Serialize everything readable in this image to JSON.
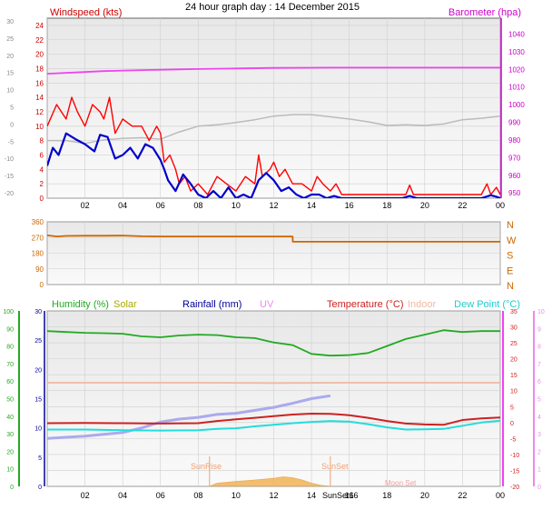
{
  "title": "24 hour graph day : 14 December 2015",
  "x_ticks": [
    "02",
    "04",
    "06",
    "08",
    "10",
    "12",
    "14",
    "16",
    "18",
    "20",
    "22",
    "00"
  ],
  "colors": {
    "wind_axis": "#cc0000",
    "baro_axis": "#cc00cc",
    "wind_gust": "#ff0000",
    "wind_avg": "#0000cc",
    "wind_dir": "#cc6600",
    "baro_line": "#ee44ee",
    "grey_line": "#bbbbbb",
    "humidity": "#22aa22",
    "solar": "#aaaa00",
    "rainfall": "#000099",
    "uv": "#ee88ee",
    "temp": "#cc2222",
    "indoor": "#f0b8a0",
    "dew": "#22dddd",
    "temp_axis": "#ee00ee"
  },
  "chart_data": [
    {
      "type": "line",
      "panel": "wind",
      "labels": {
        "left": "Windspeed (kts)",
        "right": "Barometer (hpa)"
      },
      "left_ticks": [
        "24",
        "22",
        "20",
        "18",
        "16",
        "14",
        "12",
        "10",
        "8",
        "6",
        "4",
        "2",
        "0"
      ],
      "right_ticks": [
        "1040",
        "1030",
        "1020",
        "1010",
        "1000",
        "990",
        "980",
        "970",
        "960",
        "950"
      ],
      "outer_ticks": [
        "30",
        "25",
        "20",
        "15",
        "10",
        "5",
        "0",
        "-5",
        "-10",
        "-15",
        "-20"
      ],
      "ylim_left": [
        0,
        25
      ],
      "ylim_right": [
        947,
        1049
      ],
      "x_range_hours": [
        0,
        24
      ],
      "series": [
        {
          "id": "barometer",
          "axis": "right",
          "x": [
            0,
            2,
            3,
            5,
            7,
            8,
            10,
            12,
            14,
            15,
            16,
            18,
            20,
            22,
            24
          ],
          "y": [
            1017.5,
            1018.5,
            1019,
            1019.6,
            1020,
            1020.2,
            1020.5,
            1020.8,
            1020.9,
            1021,
            1021,
            1021,
            1021,
            1021,
            1021
          ]
        },
        {
          "id": "grey",
          "axis": "left",
          "x": [
            0,
            1,
            2,
            3,
            4,
            5,
            6,
            7,
            8,
            9,
            10,
            11,
            12,
            13,
            14,
            15,
            16,
            17,
            18,
            19,
            20,
            21,
            22,
            23,
            24
          ],
          "y": [
            8,
            8,
            7.6,
            8.1,
            8.3,
            8.4,
            8.2,
            9.2,
            10,
            10.2,
            10.5,
            10.9,
            11.4,
            11.6,
            11.6,
            11.3,
            11,
            10.6,
            10.1,
            10.2,
            10.1,
            10.3,
            10.9,
            11.1,
            11.4
          ]
        },
        {
          "id": "gust",
          "axis": "left",
          "x": [
            0,
            0.5,
            1,
            1.3,
            1.6,
            2,
            2.4,
            2.8,
            3,
            3.3,
            3.6,
            4,
            4.5,
            5,
            5.4,
            5.8,
            6,
            6.2,
            6.5,
            6.8,
            7,
            7.3,
            7.6,
            8,
            8.5,
            9,
            9.5,
            10,
            10.5,
            11,
            11.2,
            11.4,
            11.8,
            12,
            12.3,
            12.6,
            13,
            13.5,
            14,
            14.3,
            14.6,
            15,
            15.3,
            15.6,
            16,
            16.5,
            17,
            17.5,
            18,
            18.5,
            19,
            19.2,
            19.4,
            20,
            20.5,
            21,
            21.5,
            22,
            22.5,
            23,
            23.3,
            23.5,
            23.8,
            24
          ],
          "y": [
            10,
            13,
            11,
            14,
            12,
            10,
            13,
            12,
            11,
            14,
            9,
            11,
            10,
            10,
            8,
            10,
            9,
            5,
            6,
            4,
            2,
            3,
            1,
            2,
            0.5,
            3,
            2,
            1,
            3,
            2,
            6,
            3,
            4,
            5,
            3,
            4,
            2,
            2,
            1,
            3,
            2,
            1,
            2,
            0.5,
            0.5,
            0.5,
            0.5,
            0.5,
            0.5,
            0.5,
            0.5,
            1.8,
            0.5,
            0.5,
            0.5,
            0.5,
            0.5,
            0.5,
            0.5,
            0.5,
            2,
            0.5,
            1.5,
            0.5
          ]
        },
        {
          "id": "average",
          "axis": "left",
          "x": [
            0,
            0.3,
            0.6,
            1,
            1.5,
            2,
            2.5,
            2.8,
            3.2,
            3.6,
            4,
            4.4,
            4.8,
            5.2,
            5.6,
            6,
            6.2,
            6.4,
            6.8,
            7.2,
            7.6,
            8,
            8.4,
            8.8,
            9.2,
            9.6,
            10,
            10.4,
            10.8,
            11.2,
            11.6,
            12,
            12.4,
            12.8,
            13.2,
            13.6,
            14,
            14.4,
            14.8,
            15.2,
            15.6,
            16,
            17,
            18,
            18.8,
            19.2,
            19.6,
            20,
            21,
            22,
            23,
            23.5,
            23.8,
            24
          ],
          "y": [
            4.5,
            7,
            6,
            9,
            8.2,
            7.5,
            6.5,
            8.8,
            8.5,
            5.5,
            6,
            7,
            5.5,
            7.5,
            7,
            5.3,
            4,
            2.5,
            1,
            3.3,
            2,
            0.5,
            0,
            1,
            0,
            1.5,
            0,
            0.5,
            0,
            2.5,
            3.5,
            2.5,
            1,
            1.5,
            0.5,
            0,
            0.5,
            0.5,
            0,
            0.3,
            0,
            0,
            0,
            0,
            0,
            0.3,
            0,
            0,
            0,
            0,
            0,
            0.4,
            0.2,
            0
          ]
        }
      ]
    },
    {
      "type": "line",
      "panel": "direction",
      "left_ticks": [
        "360",
        "270",
        "180",
        "90",
        "0"
      ],
      "right_ticks": [
        "N",
        "W",
        "S",
        "E",
        "N"
      ],
      "ylim": [
        0,
        360
      ],
      "series": [
        {
          "id": "direction",
          "x": [
            0,
            0.5,
            1,
            2,
            3,
            4,
            5,
            6,
            7,
            8,
            9,
            10,
            11,
            12,
            13,
            13.01,
            14,
            16,
            18,
            20,
            22,
            24
          ],
          "y": [
            282,
            276,
            279,
            280,
            280,
            281,
            277,
            276,
            276,
            276,
            276,
            276,
            276,
            276,
            276,
            246,
            246,
            246,
            246,
            246,
            246,
            246
          ]
        }
      ]
    },
    {
      "type": "line",
      "panel": "temperature",
      "legend": [
        "Humidity (%)",
        "Solar",
        "Rainfall (mm)",
        "UV",
        "Temperature (°C)",
        "Indoor",
        "Dew Point (°C)"
      ],
      "annotations": [
        "SunRise",
        "SunSet",
        "SunSet16",
        "Moon Set"
      ],
      "humidity_ticks": [
        "100",
        "90",
        "80",
        "70",
        "60",
        "50",
        "40",
        "30",
        "20",
        "10",
        "0"
      ],
      "rain_ticks": [
        "30",
        "25",
        "20",
        "15",
        "10",
        "5",
        "0"
      ],
      "temp_ticks": [
        "35",
        "30",
        "25",
        "20",
        "15",
        "10",
        "5",
        "0",
        "-5",
        "-10",
        "-15",
        "-20"
      ],
      "uv_ticks": [
        "10",
        "9",
        "8",
        "7",
        "6",
        "5",
        "4",
        "3",
        "2",
        "1",
        "0"
      ],
      "ylim_temp": [
        -20,
        35
      ],
      "series": [
        {
          "id": "humidity",
          "axis": "humidity",
          "x": [
            0,
            1,
            2,
            3,
            4,
            5,
            6,
            7,
            8,
            9,
            10,
            11,
            12,
            13,
            14,
            15,
            16,
            17,
            18,
            19,
            20,
            21,
            22,
            23,
            24
          ],
          "y": [
            88.5,
            88,
            87.5,
            87.3,
            87,
            85.5,
            85,
            86,
            86.5,
            86.2,
            85,
            84.5,
            82,
            80.5,
            75.5,
            74.5,
            74.8,
            76,
            80,
            84,
            86.5,
            89,
            88,
            88.5,
            88.5
          ]
        },
        {
          "id": "temperature",
          "axis": "temp",
          "x": [
            0,
            2,
            4,
            6,
            8,
            9,
            10,
            11,
            12,
            13,
            14,
            15,
            16,
            17,
            18,
            19,
            20,
            21,
            22,
            23,
            24
          ],
          "y": [
            -0.2,
            -0.1,
            -0.2,
            -0.3,
            -0.2,
            0.5,
            1,
            1.5,
            2,
            2.5,
            2.8,
            2.7,
            2.3,
            1.5,
            0.5,
            -0.3,
            -0.6,
            -0.7,
            0.8,
            1.3,
            1.6
          ]
        },
        {
          "id": "dewpoint",
          "axis": "temp",
          "x": [
            0,
            2,
            4,
            6,
            8,
            9,
            10,
            11,
            12,
            13,
            14,
            15,
            16,
            17,
            18,
            19,
            20,
            21,
            22,
            23,
            24
          ],
          "y": [
            -2.2,
            -2.2,
            -2.4,
            -2.5,
            -2.4,
            -2,
            -1.8,
            -1.2,
            -0.7,
            -0.2,
            0.2,
            0.5,
            0.3,
            -0.5,
            -1.5,
            -2.2,
            -2.1,
            -2,
            -1,
            0,
            0.6
          ]
        },
        {
          "id": "indoor",
          "axis": "temp",
          "x": [
            0,
            4,
            8,
            12,
            16,
            20,
            24
          ],
          "y": [
            12.5,
            12.5,
            12.5,
            12.4,
            12.5,
            12.5,
            12.5
          ]
        },
        {
          "id": "rainfall",
          "axis": "rain",
          "x": [
            0,
            1,
            2,
            3,
            4,
            5,
            6,
            7,
            8,
            9,
            10,
            11,
            12,
            13,
            14,
            15
          ],
          "y": [
            8.2,
            8.4,
            8.6,
            8.9,
            9.2,
            10,
            11,
            11.5,
            11.8,
            12.3,
            12.5,
            13,
            13.5,
            14.2,
            15,
            15.5
          ]
        },
        {
          "id": "solar",
          "axis": "temp",
          "type": "area",
          "x": [
            8.6,
            9,
            10,
            11,
            12,
            12.5,
            13,
            13.5,
            14,
            14.5,
            15
          ],
          "y": [
            -20,
            -19,
            -18.5,
            -18,
            -17.5,
            -17,
            -17.3,
            -18,
            -19,
            -19.7,
            -20
          ]
        }
      ]
    }
  ]
}
